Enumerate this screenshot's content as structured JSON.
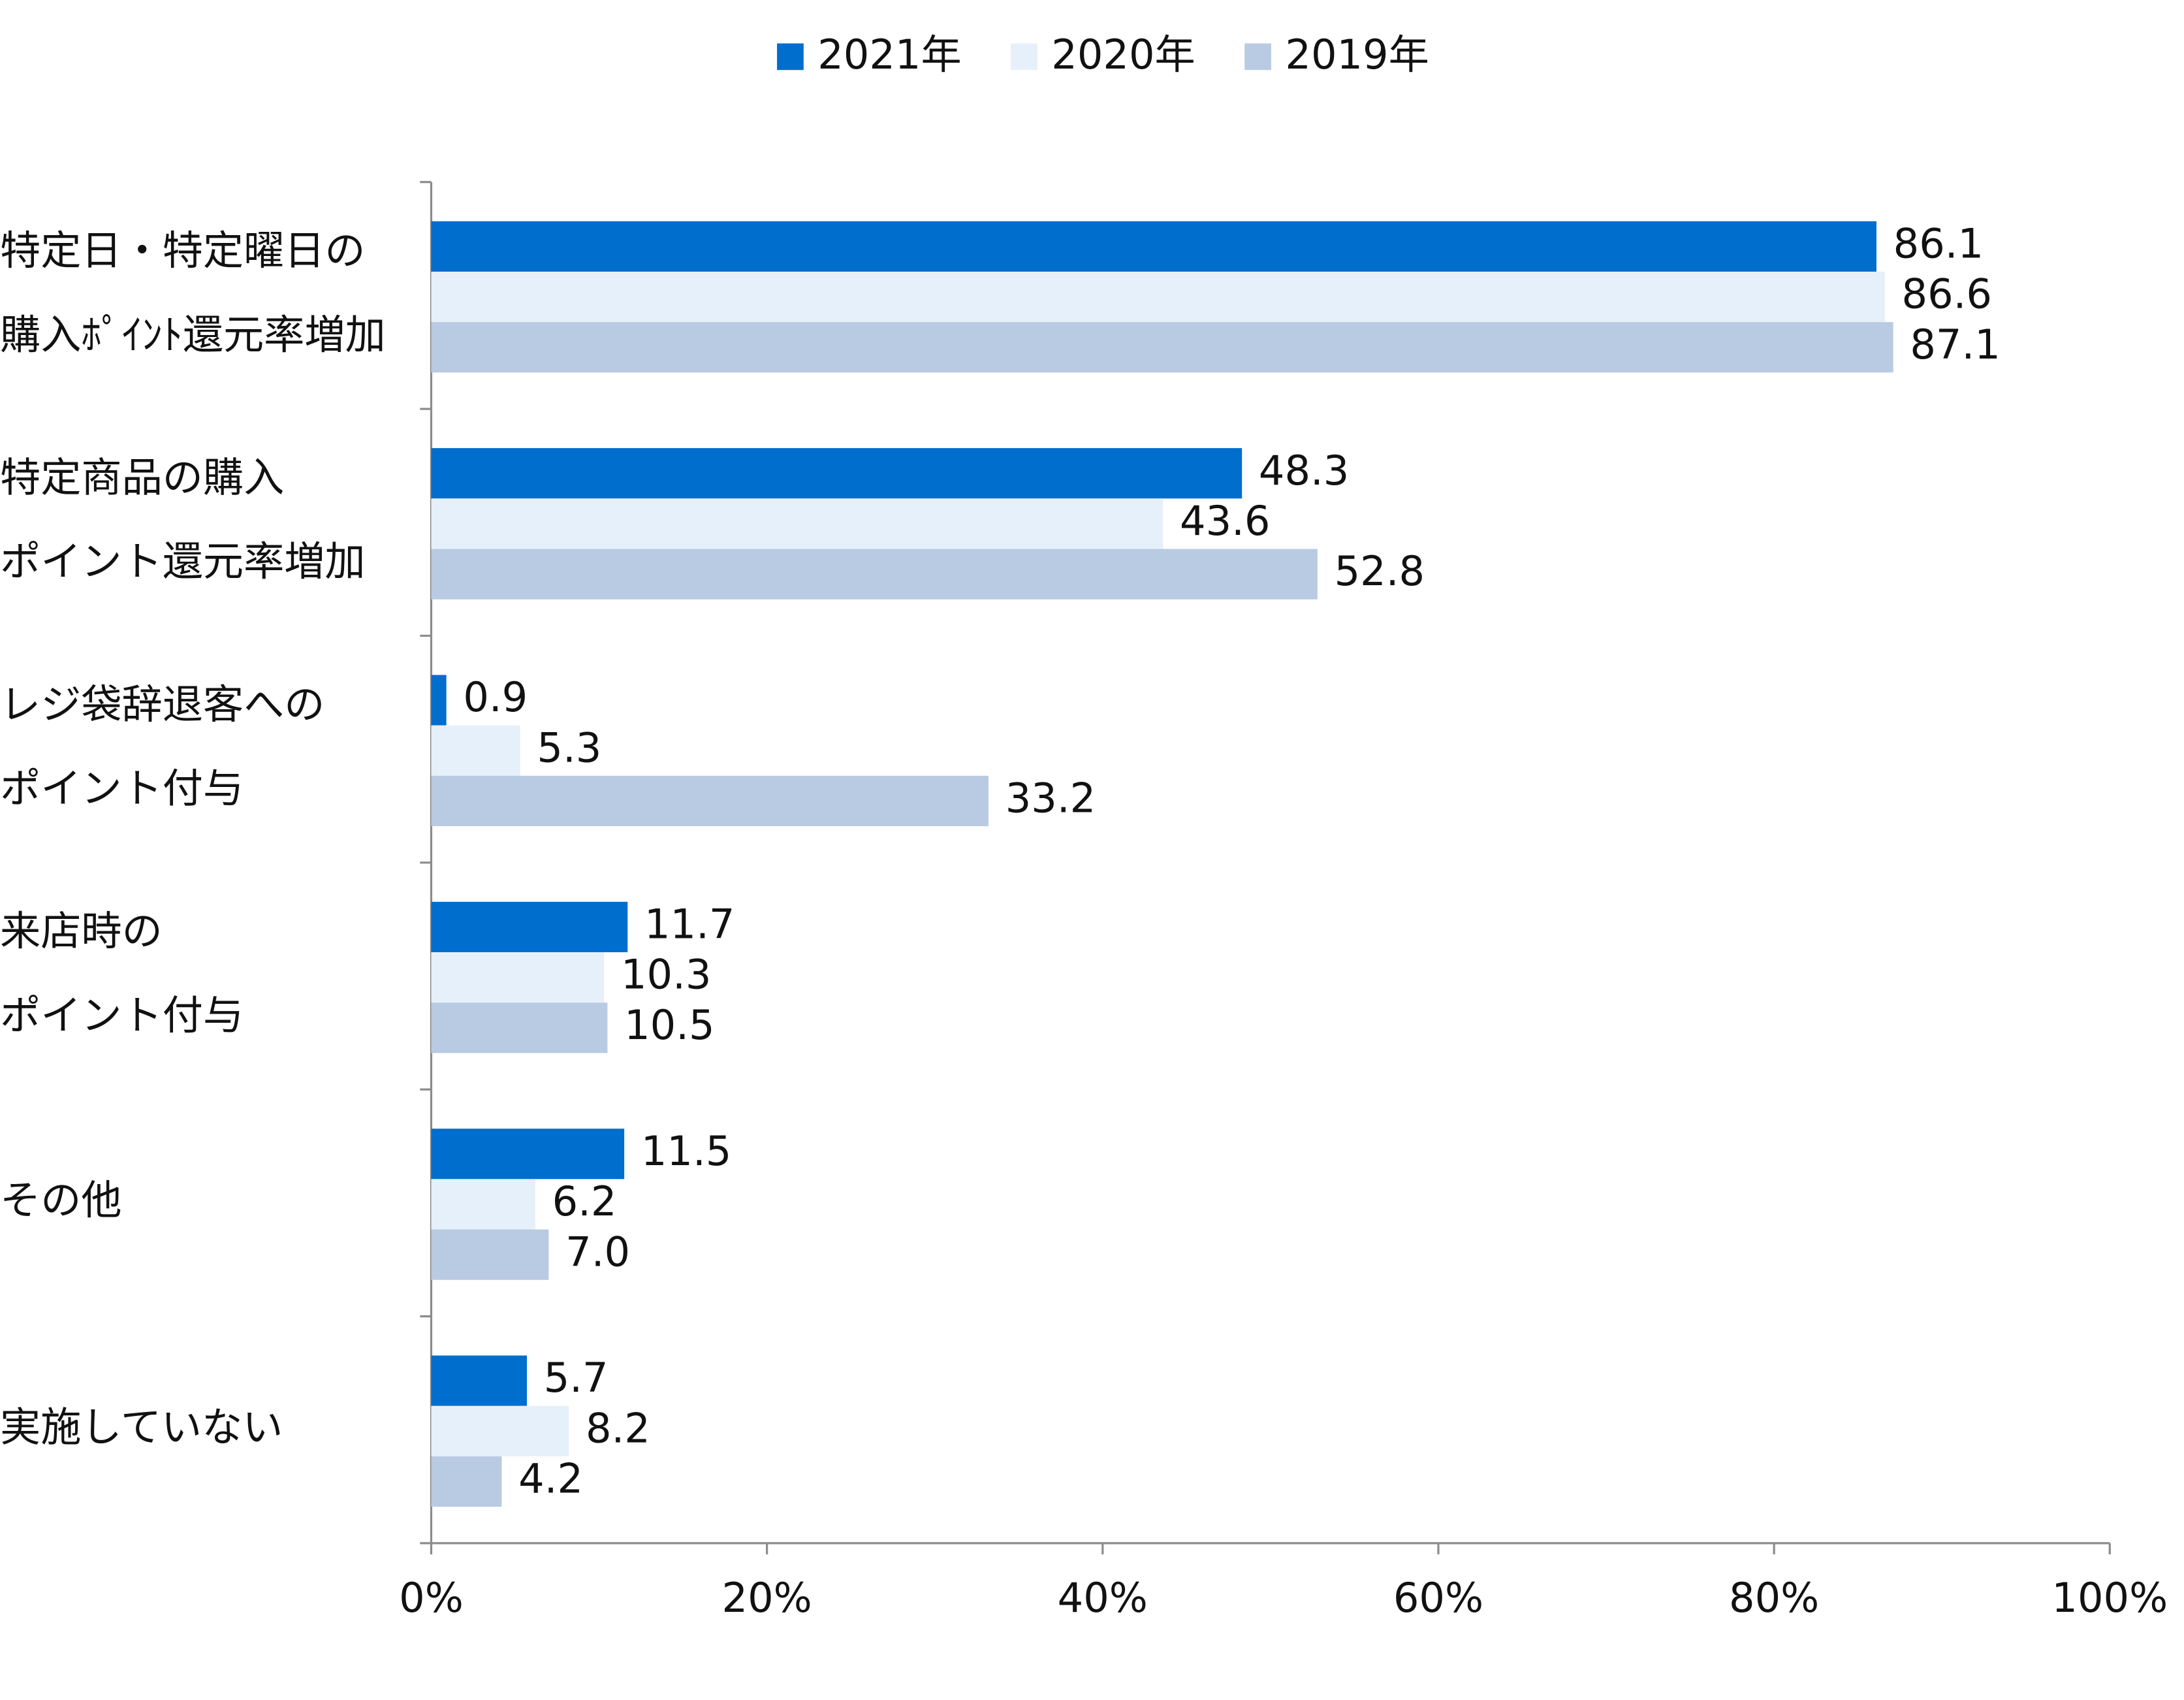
{
  "chart_data": {
    "type": "hbar",
    "categories": [
      [
        "特定日・特定曜日の",
        "購入ﾎﾟｲﾝﾄ還元率増加"
      ],
      [
        "特定商品の購入",
        "ポイント還元率増加"
      ],
      [
        "レジ袋辞退客への",
        "ポイント付与"
      ],
      [
        "来店時の",
        "ポイント付与"
      ],
      [
        "その他"
      ],
      [
        "実施していない"
      ]
    ],
    "series": [
      {
        "name": "2021年",
        "color": "#006ecd",
        "values": [
          86.1,
          48.3,
          0.9,
          11.7,
          11.5,
          5.7
        ]
      },
      {
        "name": "2020年",
        "color": "#e6f0fa",
        "values": [
          86.6,
          43.6,
          5.3,
          10.3,
          6.2,
          8.2
        ]
      },
      {
        "name": "2019年",
        "color": "#b9cbe3",
        "values": [
          87.1,
          52.8,
          33.2,
          10.5,
          7.0,
          4.2
        ],
        "value_labels": [
          "87.1",
          "52.8",
          "33.2",
          "10.5",
          "7.0",
          "4.2"
        ]
      }
    ],
    "xlim": [
      0,
      100
    ],
    "xticks": [
      {
        "value": 0,
        "label": "0%"
      },
      {
        "value": 20,
        "label": "20%"
      },
      {
        "value": 40,
        "label": "40%"
      },
      {
        "value": 60,
        "label": "60%"
      },
      {
        "value": 80,
        "label": "80%"
      },
      {
        "value": 100,
        "label": "100%"
      }
    ],
    "legend": "top"
  }
}
